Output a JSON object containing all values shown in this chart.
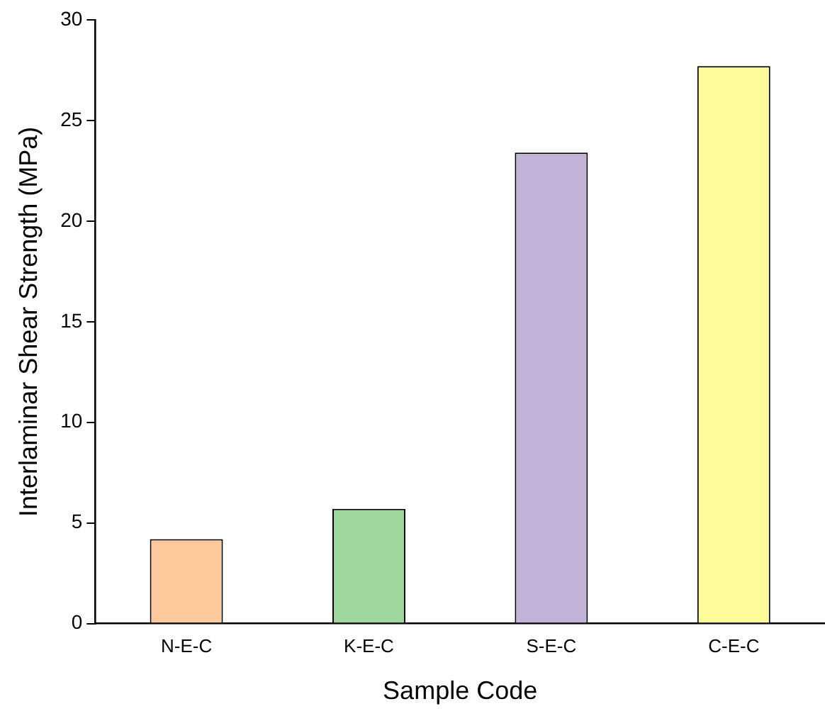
{
  "chart_data": {
    "type": "bar",
    "xlabel": "Sample Code",
    "ylabel": "Interlaminar Shear Strength (MPa)",
    "categories": [
      "N-E-C",
      "K-E-C",
      "S-E-C",
      "C-E-C"
    ],
    "values": [
      4.2,
      5.7,
      23.4,
      27.7
    ],
    "colors": [
      "#fbc99b",
      "#9dd79b",
      "#c3b3d8",
      "#fdfb9a"
    ],
    "ylim": [
      0,
      30
    ],
    "yticks": [
      0,
      5,
      10,
      15,
      20,
      25,
      30
    ],
    "grid": false,
    "legend": false
  }
}
